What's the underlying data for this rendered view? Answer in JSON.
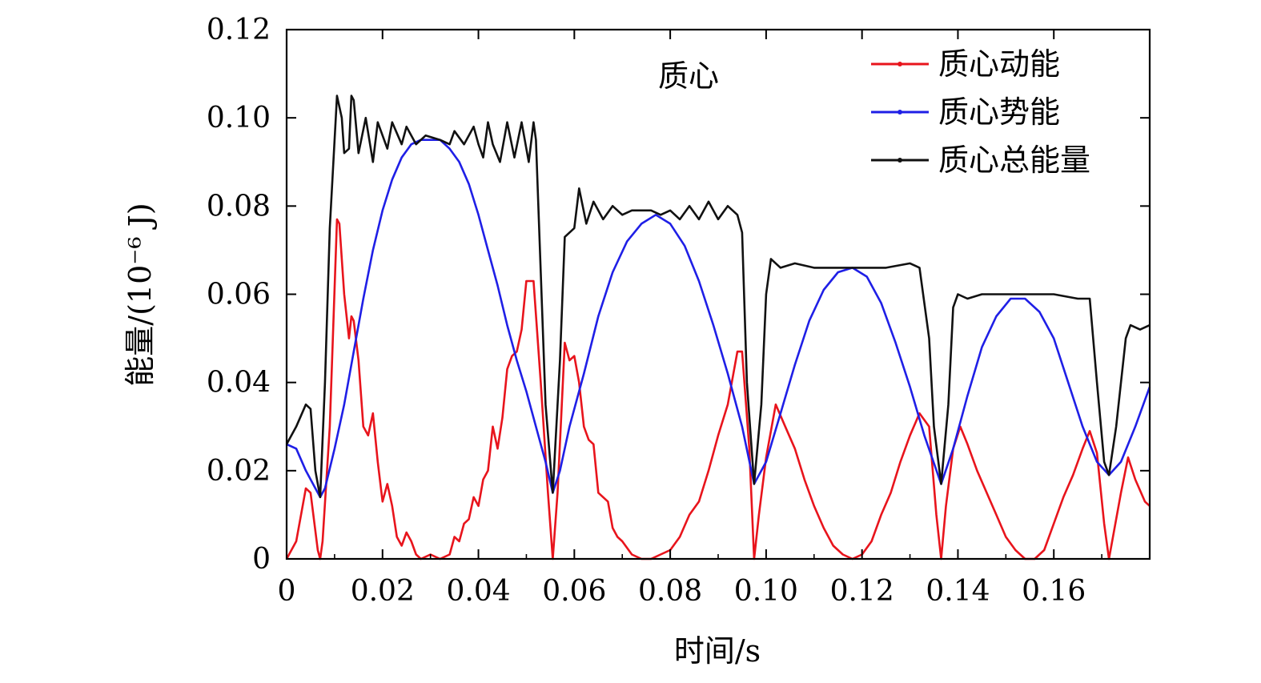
{
  "chart_data": {
    "type": "line",
    "annotation": "质心",
    "xlabel": "时间/s",
    "ylabel": "能量/(10⁻⁶ J)",
    "xlim": [
      0,
      0.18
    ],
    "ylim": [
      0,
      0.12
    ],
    "x_ticks": [
      "0",
      "0.02",
      "0.04",
      "0.06",
      "0.08",
      "0.10",
      "0.12",
      "0.14",
      "0.16"
    ],
    "x_tick_values": [
      0,
      0.02,
      0.04,
      0.06,
      0.08,
      0.1,
      0.12,
      0.14,
      0.16
    ],
    "y_ticks": [
      "0",
      "0.02",
      "0.04",
      "0.06",
      "0.08",
      "0.10",
      "0.12"
    ],
    "y_tick_values": [
      0,
      0.02,
      0.04,
      0.06,
      0.08,
      0.1,
      0.12
    ],
    "grid": false,
    "legend_position": "top-right",
    "series": [
      {
        "name": "质心动能",
        "color": "#e8141c",
        "points": [
          [
            0,
            0.0
          ],
          [
            0.002,
            0.004
          ],
          [
            0.004,
            0.016
          ],
          [
            0.005,
            0.015
          ],
          [
            0.0065,
            0.002
          ],
          [
            0.007,
            0.0
          ],
          [
            0.0075,
            0.004
          ],
          [
            0.009,
            0.03
          ],
          [
            0.0105,
            0.077
          ],
          [
            0.011,
            0.076
          ],
          [
            0.012,
            0.06
          ],
          [
            0.013,
            0.05
          ],
          [
            0.0135,
            0.055
          ],
          [
            0.014,
            0.054
          ],
          [
            0.015,
            0.045
          ],
          [
            0.016,
            0.03
          ],
          [
            0.017,
            0.028
          ],
          [
            0.018,
            0.033
          ],
          [
            0.019,
            0.022
          ],
          [
            0.02,
            0.013
          ],
          [
            0.021,
            0.017
          ],
          [
            0.022,
            0.012
          ],
          [
            0.023,
            0.005
          ],
          [
            0.024,
            0.003
          ],
          [
            0.025,
            0.006
          ],
          [
            0.026,
            0.004
          ],
          [
            0.027,
            0.001
          ],
          [
            0.028,
            0.0
          ],
          [
            0.03,
            0.001
          ],
          [
            0.032,
            0.0
          ],
          [
            0.034,
            0.001
          ],
          [
            0.035,
            0.005
          ],
          [
            0.036,
            0.004
          ],
          [
            0.037,
            0.008
          ],
          [
            0.038,
            0.009
          ],
          [
            0.039,
            0.014
          ],
          [
            0.04,
            0.012
          ],
          [
            0.041,
            0.018
          ],
          [
            0.042,
            0.02
          ],
          [
            0.043,
            0.03
          ],
          [
            0.044,
            0.025
          ],
          [
            0.045,
            0.032
          ],
          [
            0.046,
            0.043
          ],
          [
            0.047,
            0.046
          ],
          [
            0.048,
            0.047
          ],
          [
            0.049,
            0.052
          ],
          [
            0.05,
            0.063
          ],
          [
            0.0515,
            0.063
          ],
          [
            0.053,
            0.04
          ],
          [
            0.0545,
            0.015
          ],
          [
            0.0555,
            0.0
          ],
          [
            0.0565,
            0.015
          ],
          [
            0.058,
            0.049
          ],
          [
            0.059,
            0.045
          ],
          [
            0.06,
            0.046
          ],
          [
            0.061,
            0.04
          ],
          [
            0.062,
            0.03
          ],
          [
            0.063,
            0.027
          ],
          [
            0.064,
            0.026
          ],
          [
            0.065,
            0.015
          ],
          [
            0.066,
            0.014
          ],
          [
            0.067,
            0.013
          ],
          [
            0.068,
            0.007
          ],
          [
            0.069,
            0.005
          ],
          [
            0.07,
            0.004
          ],
          [
            0.072,
            0.001
          ],
          [
            0.074,
            0.0
          ],
          [
            0.076,
            0.0
          ],
          [
            0.078,
            0.001
          ],
          [
            0.08,
            0.002
          ],
          [
            0.082,
            0.005
          ],
          [
            0.084,
            0.01
          ],
          [
            0.086,
            0.013
          ],
          [
            0.088,
            0.02
          ],
          [
            0.09,
            0.028
          ],
          [
            0.092,
            0.035
          ],
          [
            0.094,
            0.047
          ],
          [
            0.095,
            0.047
          ],
          [
            0.0965,
            0.025
          ],
          [
            0.0975,
            0.0
          ],
          [
            0.0985,
            0.01
          ],
          [
            0.1,
            0.023
          ],
          [
            0.102,
            0.035
          ],
          [
            0.104,
            0.03
          ],
          [
            0.106,
            0.025
          ],
          [
            0.108,
            0.018
          ],
          [
            0.11,
            0.012
          ],
          [
            0.112,
            0.007
          ],
          [
            0.114,
            0.003
          ],
          [
            0.116,
            0.001
          ],
          [
            0.118,
            0.0
          ],
          [
            0.12,
            0.001
          ],
          [
            0.122,
            0.004
          ],
          [
            0.124,
            0.01
          ],
          [
            0.126,
            0.015
          ],
          [
            0.128,
            0.022
          ],
          [
            0.13,
            0.028
          ],
          [
            0.132,
            0.033
          ],
          [
            0.134,
            0.03
          ],
          [
            0.1355,
            0.01
          ],
          [
            0.1365,
            0.0
          ],
          [
            0.1375,
            0.012
          ],
          [
            0.139,
            0.025
          ],
          [
            0.1405,
            0.03
          ],
          [
            0.142,
            0.026
          ],
          [
            0.144,
            0.02
          ],
          [
            0.146,
            0.015
          ],
          [
            0.148,
            0.01
          ],
          [
            0.15,
            0.005
          ],
          [
            0.152,
            0.002
          ],
          [
            0.154,
            0.0
          ],
          [
            0.156,
            0.0
          ],
          [
            0.158,
            0.002
          ],
          [
            0.16,
            0.008
          ],
          [
            0.162,
            0.014
          ],
          [
            0.164,
            0.019
          ],
          [
            0.166,
            0.025
          ],
          [
            0.1675,
            0.029
          ],
          [
            0.169,
            0.024
          ],
          [
            0.1705,
            0.008
          ],
          [
            0.1715,
            0.0
          ],
          [
            0.1725,
            0.006
          ],
          [
            0.174,
            0.015
          ],
          [
            0.1755,
            0.023
          ],
          [
            0.177,
            0.018
          ],
          [
            0.179,
            0.013
          ],
          [
            0.18,
            0.012
          ]
        ]
      },
      {
        "name": "质心势能",
        "color": "#1f1fe6",
        "points": [
          [
            0,
            0.026
          ],
          [
            0.002,
            0.025
          ],
          [
            0.004,
            0.02
          ],
          [
            0.006,
            0.016
          ],
          [
            0.007,
            0.014
          ],
          [
            0.008,
            0.016
          ],
          [
            0.01,
            0.025
          ],
          [
            0.012,
            0.035
          ],
          [
            0.014,
            0.047
          ],
          [
            0.016,
            0.059
          ],
          [
            0.018,
            0.07
          ],
          [
            0.02,
            0.079
          ],
          [
            0.022,
            0.086
          ],
          [
            0.024,
            0.091
          ],
          [
            0.026,
            0.094
          ],
          [
            0.028,
            0.095
          ],
          [
            0.03,
            0.095
          ],
          [
            0.032,
            0.095
          ],
          [
            0.034,
            0.093
          ],
          [
            0.036,
            0.09
          ],
          [
            0.038,
            0.085
          ],
          [
            0.04,
            0.078
          ],
          [
            0.042,
            0.07
          ],
          [
            0.044,
            0.062
          ],
          [
            0.046,
            0.053
          ],
          [
            0.048,
            0.045
          ],
          [
            0.05,
            0.038
          ],
          [
            0.052,
            0.03
          ],
          [
            0.054,
            0.022
          ],
          [
            0.0555,
            0.015
          ],
          [
            0.057,
            0.02
          ],
          [
            0.059,
            0.03
          ],
          [
            0.062,
            0.042
          ],
          [
            0.065,
            0.055
          ],
          [
            0.068,
            0.065
          ],
          [
            0.071,
            0.072
          ],
          [
            0.074,
            0.076
          ],
          [
            0.077,
            0.078
          ],
          [
            0.08,
            0.076
          ],
          [
            0.083,
            0.071
          ],
          [
            0.086,
            0.063
          ],
          [
            0.089,
            0.053
          ],
          [
            0.092,
            0.042
          ],
          [
            0.095,
            0.03
          ],
          [
            0.0975,
            0.017
          ],
          [
            0.1,
            0.022
          ],
          [
            0.103,
            0.033
          ],
          [
            0.106,
            0.044
          ],
          [
            0.109,
            0.054
          ],
          [
            0.112,
            0.061
          ],
          [
            0.115,
            0.065
          ],
          [
            0.118,
            0.066
          ],
          [
            0.121,
            0.064
          ],
          [
            0.124,
            0.058
          ],
          [
            0.127,
            0.049
          ],
          [
            0.13,
            0.039
          ],
          [
            0.133,
            0.028
          ],
          [
            0.1365,
            0.017
          ],
          [
            0.139,
            0.025
          ],
          [
            0.142,
            0.037
          ],
          [
            0.145,
            0.048
          ],
          [
            0.148,
            0.055
          ],
          [
            0.151,
            0.059
          ],
          [
            0.154,
            0.059
          ],
          [
            0.157,
            0.056
          ],
          [
            0.16,
            0.05
          ],
          [
            0.163,
            0.04
          ],
          [
            0.166,
            0.03
          ],
          [
            0.169,
            0.022
          ],
          [
            0.1715,
            0.019
          ],
          [
            0.174,
            0.022
          ],
          [
            0.177,
            0.03
          ],
          [
            0.18,
            0.039
          ]
        ]
      },
      {
        "name": "质心总能量",
        "color": "#111111",
        "points": [
          [
            0,
            0.026
          ],
          [
            0.002,
            0.03
          ],
          [
            0.004,
            0.035
          ],
          [
            0.005,
            0.034
          ],
          [
            0.006,
            0.02
          ],
          [
            0.007,
            0.014
          ],
          [
            0.008,
            0.04
          ],
          [
            0.009,
            0.075
          ],
          [
            0.0105,
            0.105
          ],
          [
            0.0115,
            0.1
          ],
          [
            0.012,
            0.092
          ],
          [
            0.013,
            0.093
          ],
          [
            0.0135,
            0.105
          ],
          [
            0.014,
            0.104
          ],
          [
            0.015,
            0.092
          ],
          [
            0.0165,
            0.1
          ],
          [
            0.018,
            0.09
          ],
          [
            0.019,
            0.099
          ],
          [
            0.021,
            0.093
          ],
          [
            0.022,
            0.099
          ],
          [
            0.024,
            0.094
          ],
          [
            0.025,
            0.098
          ],
          [
            0.027,
            0.094
          ],
          [
            0.029,
            0.096
          ],
          [
            0.032,
            0.095
          ],
          [
            0.034,
            0.094
          ],
          [
            0.035,
            0.097
          ],
          [
            0.037,
            0.094
          ],
          [
            0.039,
            0.098
          ],
          [
            0.04,
            0.094
          ],
          [
            0.041,
            0.091
          ],
          [
            0.042,
            0.099
          ],
          [
            0.043,
            0.094
          ],
          [
            0.0445,
            0.09
          ],
          [
            0.046,
            0.099
          ],
          [
            0.0475,
            0.091
          ],
          [
            0.049,
            0.099
          ],
          [
            0.0505,
            0.09
          ],
          [
            0.0515,
            0.099
          ],
          [
            0.052,
            0.095
          ],
          [
            0.053,
            0.065
          ],
          [
            0.054,
            0.035
          ],
          [
            0.0555,
            0.015
          ],
          [
            0.057,
            0.045
          ],
          [
            0.058,
            0.073
          ],
          [
            0.06,
            0.075
          ],
          [
            0.061,
            0.084
          ],
          [
            0.0625,
            0.076
          ],
          [
            0.064,
            0.081
          ],
          [
            0.066,
            0.077
          ],
          [
            0.068,
            0.08
          ],
          [
            0.07,
            0.078
          ],
          [
            0.072,
            0.079
          ],
          [
            0.074,
            0.079
          ],
          [
            0.076,
            0.079
          ],
          [
            0.078,
            0.078
          ],
          [
            0.08,
            0.079
          ],
          [
            0.082,
            0.077
          ],
          [
            0.084,
            0.08
          ],
          [
            0.086,
            0.077
          ],
          [
            0.088,
            0.081
          ],
          [
            0.09,
            0.077
          ],
          [
            0.092,
            0.08
          ],
          [
            0.094,
            0.078
          ],
          [
            0.095,
            0.074
          ],
          [
            0.096,
            0.04
          ],
          [
            0.0975,
            0.017
          ],
          [
            0.099,
            0.035
          ],
          [
            0.1,
            0.06
          ],
          [
            0.101,
            0.068
          ],
          [
            0.103,
            0.066
          ],
          [
            0.106,
            0.067
          ],
          [
            0.11,
            0.066
          ],
          [
            0.115,
            0.066
          ],
          [
            0.12,
            0.066
          ],
          [
            0.125,
            0.066
          ],
          [
            0.13,
            0.067
          ],
          [
            0.132,
            0.066
          ],
          [
            0.134,
            0.05
          ],
          [
            0.135,
            0.03
          ],
          [
            0.1365,
            0.017
          ],
          [
            0.138,
            0.035
          ],
          [
            0.139,
            0.057
          ],
          [
            0.14,
            0.06
          ],
          [
            0.142,
            0.059
          ],
          [
            0.145,
            0.06
          ],
          [
            0.15,
            0.06
          ],
          [
            0.155,
            0.06
          ],
          [
            0.16,
            0.06
          ],
          [
            0.165,
            0.059
          ],
          [
            0.1675,
            0.059
          ],
          [
            0.169,
            0.04
          ],
          [
            0.1705,
            0.022
          ],
          [
            0.1715,
            0.019
          ],
          [
            0.173,
            0.03
          ],
          [
            0.175,
            0.05
          ],
          [
            0.176,
            0.053
          ],
          [
            0.178,
            0.052
          ],
          [
            0.18,
            0.053
          ]
        ]
      }
    ]
  }
}
